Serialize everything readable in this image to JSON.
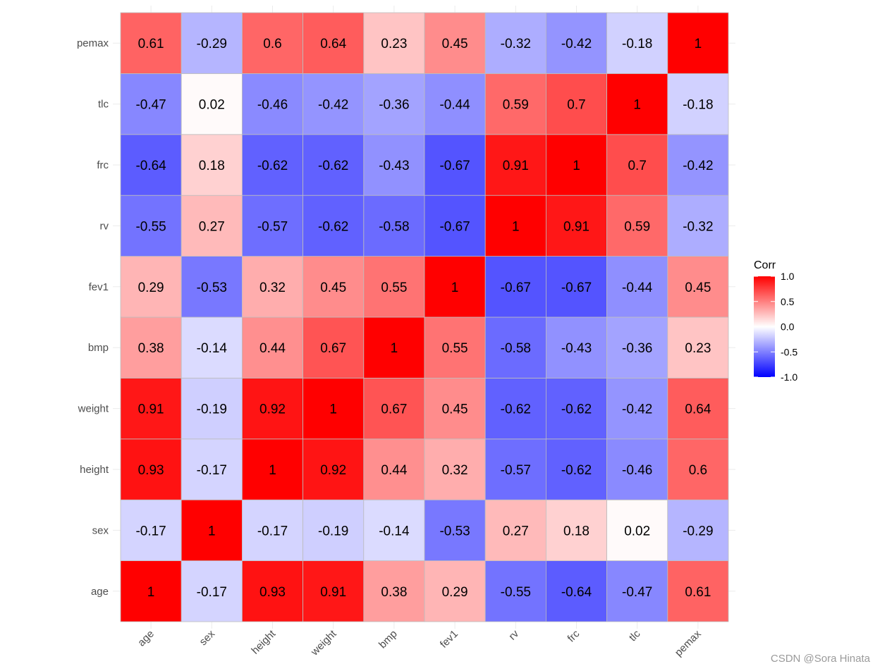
{
  "chart_data": {
    "type": "heatmap",
    "x_labels": [
      "age",
      "sex",
      "height",
      "weight",
      "bmp",
      "fev1",
      "rv",
      "frc",
      "tlc",
      "pemax"
    ],
    "y_labels": [
      "age",
      "sex",
      "height",
      "weight",
      "bmp",
      "fev1",
      "rv",
      "frc",
      "tlc",
      "pemax"
    ],
    "values": [
      [
        1,
        -0.17,
        0.93,
        0.91,
        0.38,
        0.29,
        -0.55,
        -0.64,
        -0.47,
        0.61
      ],
      [
        -0.17,
        1,
        -0.17,
        -0.19,
        -0.14,
        -0.53,
        0.27,
        0.18,
        0.02,
        -0.29
      ],
      [
        0.93,
        -0.17,
        1,
        0.92,
        0.44,
        0.32,
        -0.57,
        -0.62,
        -0.46,
        0.6
      ],
      [
        0.91,
        -0.19,
        0.92,
        1,
        0.67,
        0.45,
        -0.62,
        -0.62,
        -0.42,
        0.64
      ],
      [
        0.38,
        -0.14,
        0.44,
        0.67,
        1,
        0.55,
        -0.58,
        -0.43,
        -0.36,
        0.23
      ],
      [
        0.29,
        -0.53,
        0.32,
        0.45,
        0.55,
        1,
        -0.67,
        -0.67,
        -0.44,
        0.45
      ],
      [
        -0.55,
        0.27,
        -0.57,
        -0.62,
        -0.58,
        -0.67,
        1,
        0.91,
        0.59,
        -0.32
      ],
      [
        -0.64,
        0.18,
        -0.62,
        -0.62,
        -0.43,
        -0.67,
        0.91,
        1,
        0.7,
        -0.42
      ],
      [
        -0.47,
        0.02,
        -0.46,
        -0.42,
        -0.36,
        -0.44,
        0.59,
        0.7,
        1,
        -0.18
      ],
      [
        0.61,
        -0.29,
        0.6,
        0.64,
        0.23,
        0.45,
        -0.32,
        -0.42,
        -0.18,
        1
      ]
    ],
    "legend": {
      "title": "Corr",
      "ticks": [
        1.0,
        0.5,
        0.0,
        -0.5,
        -1.0
      ],
      "tick_labels": [
        "1.0",
        "0.5",
        "0.0",
        "-0.5",
        "-1.0"
      ],
      "placement": "right"
    },
    "color_scale": {
      "low": "#0000ff",
      "mid": "#ffffff",
      "high": "#ff0000",
      "limits": [
        -1,
        1
      ]
    },
    "title": "",
    "xlabel": "",
    "ylabel": ""
  },
  "watermark": "CSDN @Sora Hinata"
}
